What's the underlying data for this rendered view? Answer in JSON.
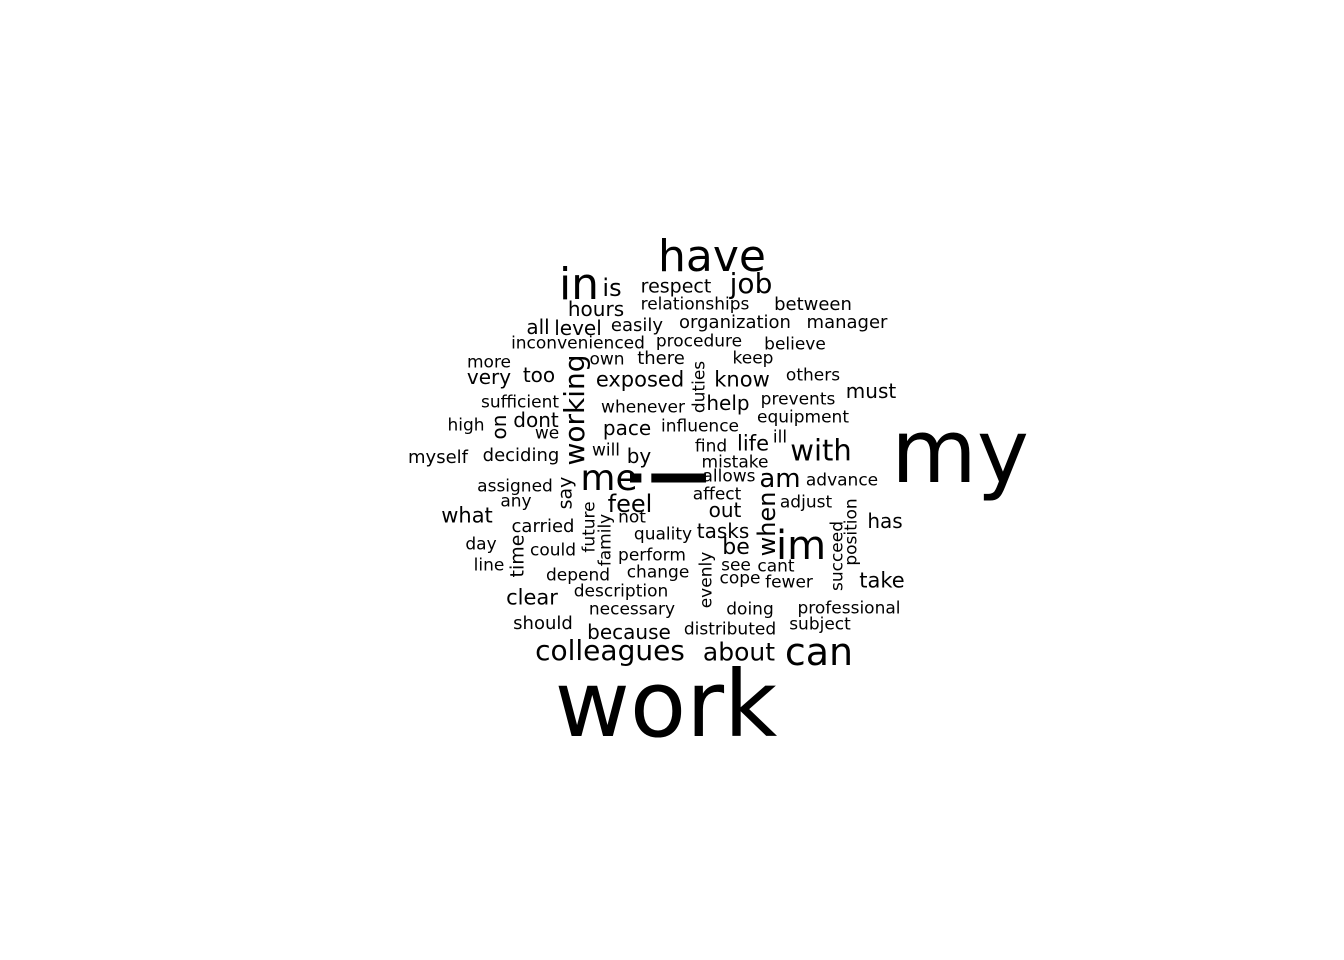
{
  "words": [
    "work",
    "my",
    "i",
    "have",
    "in",
    "can",
    "im",
    "me",
    "with",
    "colleagues",
    "job",
    "working",
    "about",
    "am",
    "feel",
    "when",
    "is",
    "hours",
    "know",
    "exposed",
    "be",
    "tasks",
    "out",
    "take",
    "clear",
    "because",
    "what",
    "must",
    "life",
    "level",
    "all",
    "organization",
    "manager",
    "between",
    "respect",
    "relationships",
    "easily",
    "too",
    "very",
    "dont",
    "help",
    "pace",
    "by",
    "on",
    "has",
    "say",
    "time",
    "there",
    "inconvenienced",
    "procedure",
    "believe",
    "more",
    "own",
    "keep",
    "duties",
    "others",
    "sufficient",
    "whenever",
    "prevents",
    "equipment",
    "high",
    "we",
    "influence",
    "will",
    "find",
    "ill",
    "myself",
    "deciding",
    "mistake",
    "advance",
    "allows",
    "assigned",
    "any",
    "affect",
    "adjust",
    "not",
    "carried",
    "quality",
    "future",
    "family",
    "position",
    "succeed",
    "day",
    "could",
    "perform",
    "see",
    "cant",
    "line",
    "depend",
    "change",
    "cope",
    "fewer",
    "evenly",
    "description",
    "necessary",
    "doing",
    "professional",
    "should",
    "distributed",
    "subject"
  ]
}
